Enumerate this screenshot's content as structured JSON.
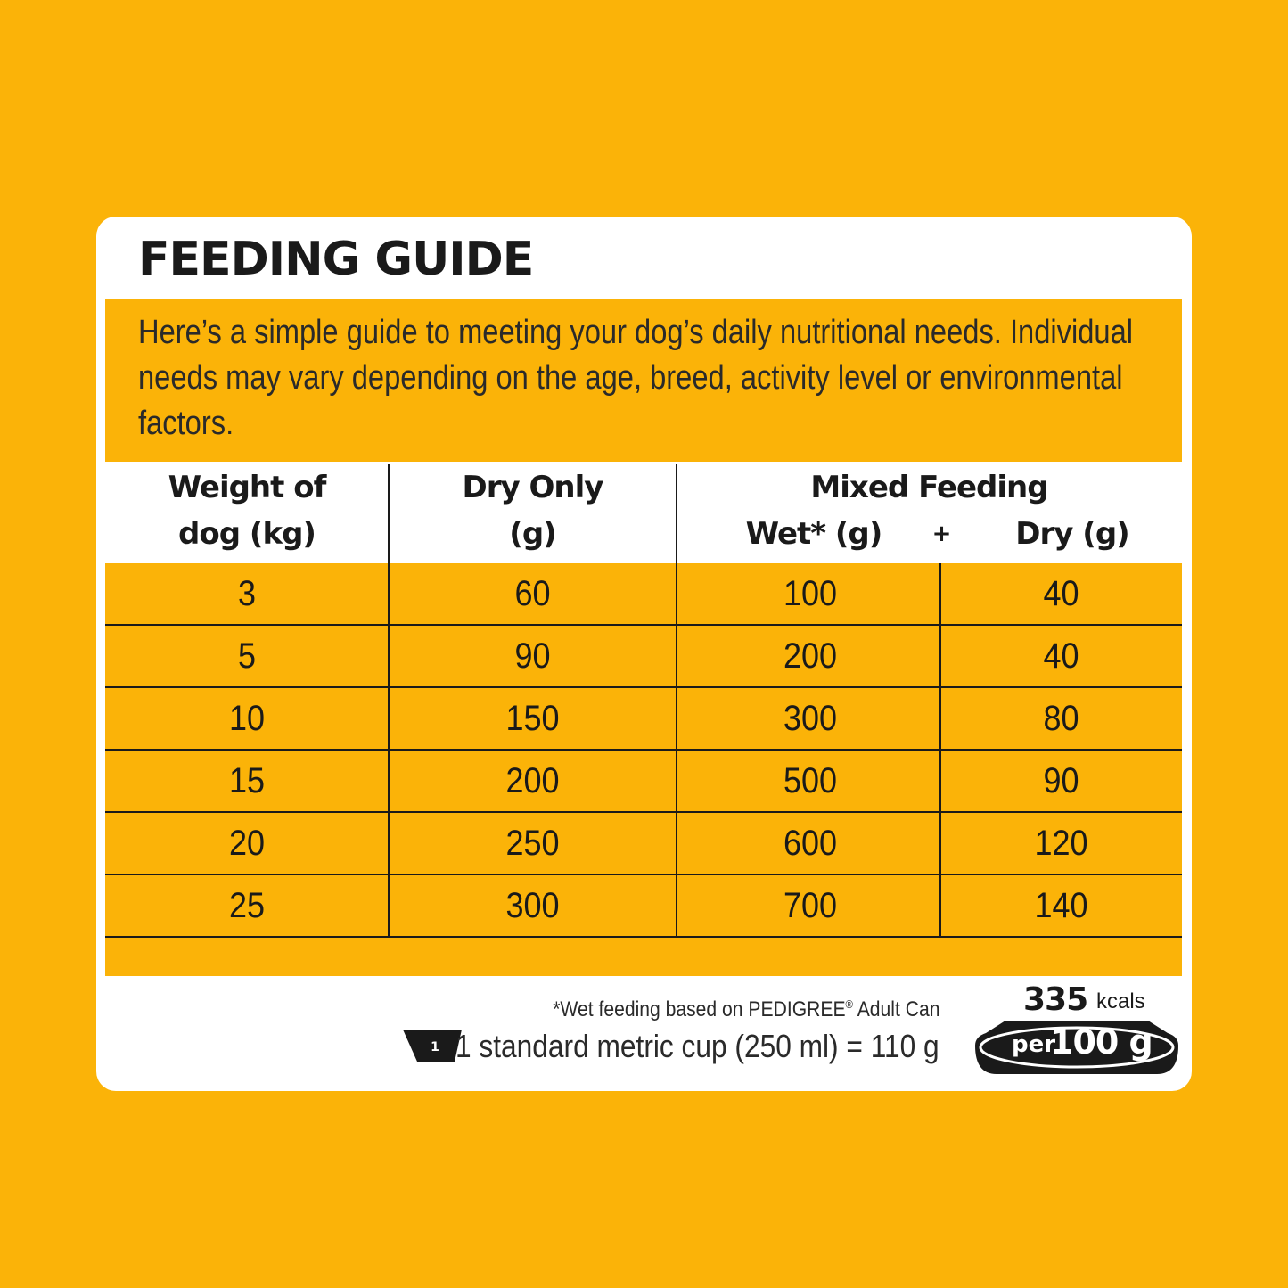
{
  "title": "FEEDING GUIDE",
  "intro": "Here’s a simple guide to meeting your dog’s daily nutritional needs. Individual needs may vary depending on the age, breed, activity level or environmental factors.",
  "headers": {
    "weight": [
      "Weight of",
      "dog (kg)"
    ],
    "dry_only": [
      "Dry Only",
      "(g)"
    ],
    "mixed": "Mixed Feeding",
    "wet": "Wet* (g)",
    "plus": "+",
    "dry": "Dry (g)"
  },
  "rows": [
    {
      "weight": "3",
      "dry_only": "60",
      "wet": "100",
      "dry": "40"
    },
    {
      "weight": "5",
      "dry_only": "90",
      "wet": "200",
      "dry": "40"
    },
    {
      "weight": "10",
      "dry_only": "150",
      "wet": "300",
      "dry": "80"
    },
    {
      "weight": "15",
      "dry_only": "200",
      "wet": "500",
      "dry": "90"
    },
    {
      "weight": "20",
      "dry_only": "250",
      "wet": "600",
      "dry": "120"
    },
    {
      "weight": "25",
      "dry_only": "300",
      "wet": "700",
      "dry": "140"
    }
  ],
  "footnote_pre": "*Wet feeding based on PEDIGREE",
  "footnote_reg": "®",
  "footnote_post": " Adult Can",
  "cup_number": "1",
  "cup_text": "1 standard metric cup (250 ml) = 110 g",
  "kcal": {
    "value": "335",
    "unit": "kcals",
    "per": "per",
    "qty": "100 g"
  },
  "colors": {
    "background": "#fbb308",
    "card": "#ffffff",
    "text": "#1a1a1a"
  }
}
